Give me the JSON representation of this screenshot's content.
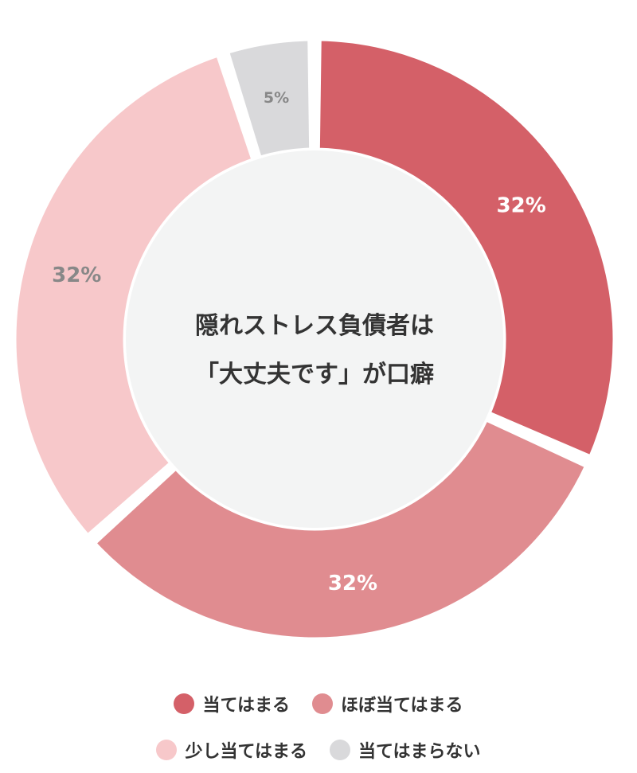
{
  "chart_data": {
    "type": "pie",
    "variant": "donut",
    "center_title": [
      "隠れストレス負債者は",
      "「大丈夫です」が口癖"
    ],
    "slices": [
      {
        "name": "当てはまる",
        "value": 32,
        "label": "32%",
        "color": "#d46068",
        "label_color": "#ffffff"
      },
      {
        "name": "ほぼ当てはまる",
        "value": 32,
        "label": "32%",
        "color": "#e08c90",
        "label_color": "#ffffff"
      },
      {
        "name": "少し当てはまる",
        "value": 32,
        "label": "32%",
        "color": "#f7c8ca",
        "label_color": "#888888"
      },
      {
        "name": "当てはまらない",
        "value": 5,
        "label": "5%",
        "color": "#d9d9db",
        "label_color": "#888888"
      }
    ],
    "legend_placement": "bottom",
    "center_color": "#f3f4f4"
  }
}
